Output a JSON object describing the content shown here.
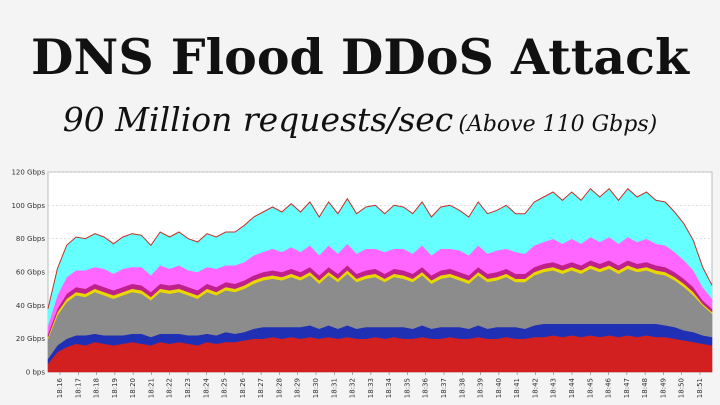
{
  "header": {
    "title": "DNS Flood DDoS Attack",
    "subtitle": "90 Million requests/sec",
    "subtitle_note": "(Above 110 Gbps)"
  },
  "chart_data": {
    "type": "area",
    "stacked": true,
    "y_unit": "Gbps",
    "ylim": [
      0,
      120
    ],
    "y_ticks": [
      "0 bps",
      "20 Gbps",
      "40 Gbps",
      "60 Gbps",
      "80 Gbps",
      "100 Gbps",
      "120 Gbps"
    ],
    "y_tick_values": [
      0,
      20,
      40,
      60,
      80,
      100,
      120
    ],
    "x_ticks": [
      "18:16",
      "18:17",
      "18:18",
      "18:19",
      "18:20",
      "18:21",
      "18:22",
      "18:23",
      "18:24",
      "18:25",
      "18:26",
      "18:27",
      "18:28",
      "18:29",
      "18:30",
      "18:31",
      "18:32",
      "18:33",
      "18:34",
      "18:35",
      "18:36",
      "18:37",
      "18:38",
      "18:39",
      "18:40",
      "18:41",
      "18:42",
      "18:43",
      "18:44",
      "18:45",
      "18:46",
      "18:47",
      "18:48",
      "18:49",
      "18:50",
      "18:51"
    ],
    "x": [
      "18:15:30",
      "18:16",
      "18:16:30",
      "18:17",
      "18:17:30",
      "18:18",
      "18:18:30",
      "18:19",
      "18:19:30",
      "18:20",
      "18:20:30",
      "18:21",
      "18:21:30",
      "18:22",
      "18:22:30",
      "18:23",
      "18:23:30",
      "18:24",
      "18:24:30",
      "18:25",
      "18:25:30",
      "18:26",
      "18:26:30",
      "18:27",
      "18:27:30",
      "18:28",
      "18:28:30",
      "18:29",
      "18:29:30",
      "18:30",
      "18:30:30",
      "18:31",
      "18:31:30",
      "18:32",
      "18:32:30",
      "18:33",
      "18:33:30",
      "18:34",
      "18:34:30",
      "18:35",
      "18:35:30",
      "18:36",
      "18:36:30",
      "18:37",
      "18:37:30",
      "18:38",
      "18:38:30",
      "18:39",
      "18:39:30",
      "18:40",
      "18:40:30",
      "18:41",
      "18:41:30",
      "18:42",
      "18:42:30",
      "18:43",
      "18:43:30",
      "18:44",
      "18:44:30",
      "18:45",
      "18:45:30",
      "18:46",
      "18:46:30",
      "18:47",
      "18:47:30",
      "18:48",
      "18:48:30",
      "18:49",
      "18:49:30",
      "18:50",
      "18:50:30",
      "18:51"
    ],
    "series": [
      {
        "color": "#d21f1f",
        "values": [
          5,
          12,
          15,
          17,
          16,
          18,
          17,
          16,
          17,
          18,
          17,
          16,
          18,
          17,
          18,
          17,
          16,
          18,
          17,
          18,
          18,
          19,
          20,
          20,
          21,
          20,
          21,
          20,
          21,
          20,
          21,
          20,
          21,
          20,
          20,
          21,
          20,
          21,
          20,
          20,
          21,
          20,
          20,
          21,
          20,
          20,
          21,
          20,
          20,
          21,
          20,
          20,
          21,
          21,
          22,
          21,
          22,
          21,
          22,
          21,
          22,
          21,
          22,
          21,
          22,
          21,
          21,
          20,
          19,
          18,
          17,
          16
        ]
      },
      {
        "color": "#2030b4",
        "values": [
          3,
          4,
          5,
          5,
          6,
          5,
          5,
          6,
          5,
          5,
          6,
          5,
          5,
          6,
          5,
          5,
          6,
          5,
          5,
          6,
          5,
          5,
          6,
          7,
          6,
          7,
          6,
          7,
          7,
          6,
          7,
          6,
          7,
          6,
          7,
          6,
          7,
          6,
          7,
          6,
          7,
          6,
          7,
          6,
          7,
          6,
          7,
          6,
          7,
          6,
          7,
          6,
          7,
          8,
          7,
          8,
          7,
          8,
          7,
          8,
          7,
          8,
          7,
          8,
          7,
          8,
          7,
          7,
          6,
          6,
          5,
          5
        ]
      },
      {
        "color": "#8c8c8c",
        "values": [
          12,
          18,
          22,
          24,
          23,
          25,
          24,
          22,
          24,
          25,
          24,
          22,
          25,
          24,
          25,
          24,
          22,
          25,
          24,
          25,
          25,
          26,
          27,
          28,
          29,
          28,
          30,
          28,
          30,
          27,
          30,
          28,
          31,
          28,
          29,
          30,
          27,
          30,
          29,
          28,
          30,
          27,
          29,
          30,
          28,
          27,
          30,
          28,
          28,
          30,
          27,
          28,
          30,
          31,
          32,
          30,
          32,
          30,
          33,
          31,
          33,
          30,
          33,
          31,
          32,
          30,
          30,
          28,
          26,
          22,
          18,
          14
        ]
      },
      {
        "color": "#e8d800",
        "values": [
          1,
          2,
          2,
          2,
          2,
          2,
          2,
          2,
          2,
          2,
          2,
          2,
          2,
          2,
          2,
          2,
          2,
          2,
          2,
          2,
          2,
          2,
          2,
          2,
          2,
          2,
          2,
          2,
          2,
          2,
          2,
          2,
          2,
          2,
          2,
          2,
          2,
          2,
          2,
          2,
          2,
          2,
          2,
          2,
          2,
          2,
          2,
          2,
          2,
          2,
          2,
          2,
          2,
          2,
          2,
          2,
          2,
          2,
          2,
          2,
          2,
          2,
          2,
          2,
          2,
          2,
          2,
          2,
          2,
          2,
          1,
          1
        ]
      },
      {
        "color": "#c0208c",
        "values": [
          2,
          2,
          3,
          3,
          3,
          3,
          3,
          3,
          3,
          3,
          3,
          3,
          3,
          3,
          3,
          3,
          3,
          3,
          3,
          3,
          3,
          3,
          3,
          3,
          3,
          3,
          3,
          3,
          3,
          3,
          3,
          3,
          3,
          3,
          3,
          3,
          3,
          3,
          3,
          3,
          3,
          3,
          3,
          3,
          3,
          3,
          3,
          3,
          3,
          3,
          3,
          3,
          3,
          3,
          3,
          3,
          3,
          3,
          3,
          3,
          3,
          3,
          3,
          3,
          3,
          3,
          3,
          3,
          3,
          3,
          2,
          2
        ]
      },
      {
        "color": "#ff66ff",
        "values": [
          5,
          8,
          10,
          10,
          11,
          10,
          11,
          10,
          11,
          10,
          11,
          10,
          11,
          10,
          11,
          10,
          11,
          10,
          11,
          10,
          11,
          11,
          12,
          12,
          13,
          12,
          13,
          12,
          13,
          12,
          13,
          12,
          13,
          12,
          13,
          12,
          13,
          12,
          13,
          12,
          13,
          12,
          13,
          12,
          13,
          12,
          13,
          12,
          13,
          12,
          13,
          12,
          13,
          13,
          14,
          13,
          14,
          13,
          14,
          13,
          14,
          13,
          14,
          13,
          14,
          13,
          13,
          12,
          11,
          10,
          8,
          6
        ]
      },
      {
        "color": "#66ffff",
        "values": [
          10,
          16,
          19,
          20,
          19,
          20,
          19,
          18,
          19,
          20,
          19,
          18,
          20,
          19,
          20,
          19,
          18,
          20,
          19,
          20,
          20,
          22,
          23,
          24,
          25,
          24,
          26,
          24,
          26,
          23,
          26,
          24,
          27,
          24,
          25,
          26,
          23,
          26,
          25,
          24,
          26,
          23,
          25,
          26,
          24,
          23,
          26,
          24,
          24,
          26,
          23,
          24,
          26,
          27,
          28,
          26,
          28,
          26,
          29,
          27,
          29,
          26,
          29,
          27,
          28,
          26,
          26,
          24,
          22,
          18,
          12,
          8
        ]
      }
    ]
  }
}
